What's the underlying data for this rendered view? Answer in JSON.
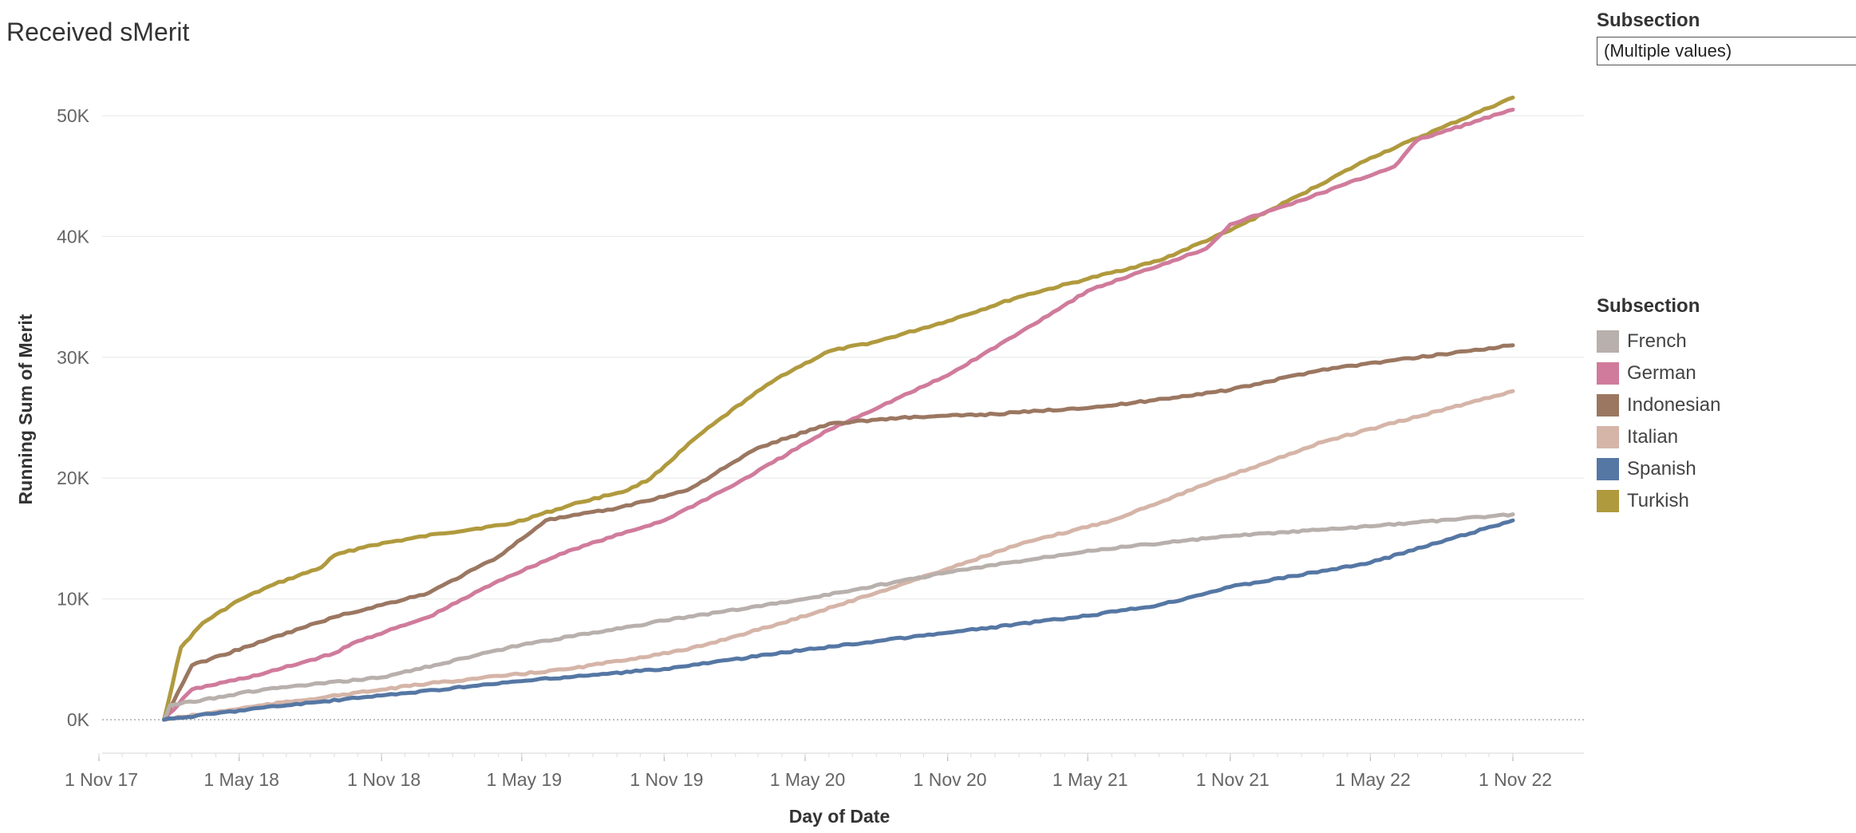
{
  "title": "Received sMerit",
  "filter": {
    "label": "Subsection",
    "value": "(Multiple values)",
    "icon": "dropdown-arrow-icon"
  },
  "legend": {
    "title": "Subsection",
    "items": [
      {
        "label": "French",
        "color": "#b8b0ac"
      },
      {
        "label": "German",
        "color": "#d07b9c"
      },
      {
        "label": "Indonesian",
        "color": "#9b7761"
      },
      {
        "label": "Italian",
        "color": "#d5b5a8"
      },
      {
        "label": "Spanish",
        "color": "#5577a4"
      },
      {
        "label": "Turkish",
        "color": "#b09a3e"
      }
    ]
  },
  "chart_data": {
    "type": "line",
    "title": "Received sMerit",
    "xlabel": "Day of Date",
    "ylabel": "Running Sum of Merit",
    "x_ticks": [
      "1 Nov 17",
      "1 May 18",
      "1 Nov 18",
      "1 May 19",
      "1 Nov 19",
      "1 May 20",
      "1 Nov 20",
      "1 May 21",
      "1 Nov 21",
      "1 May 22",
      "1 Nov 22"
    ],
    "y_ticks": [
      "0K",
      "10K",
      "20K",
      "30K",
      "40K",
      "50K"
    ],
    "ylim": [
      0,
      55000
    ],
    "grid": true,
    "legend_position": "right",
    "series": [
      {
        "name": "Turkish",
        "color": "#b09a3e",
        "x": [
          "2018-01-24",
          "2018-02-15",
          "2018-03-15",
          "2018-05-01",
          "2018-06-15",
          "2018-08-15",
          "2018-09-01",
          "2018-10-15",
          "2019-01-15",
          "2019-04-15",
          "2019-07-15",
          "2019-09-15",
          "2019-10-15",
          "2019-12-15",
          "2020-02-15",
          "2020-04-01",
          "2020-06-01",
          "2020-08-01",
          "2020-11-01",
          "2021-02-01",
          "2021-05-01",
          "2021-08-01",
          "2021-11-01",
          "2022-02-01",
          "2022-05-01",
          "2022-08-01",
          "2022-11-01"
        ],
        "values": [
          0,
          6000,
          8000,
          9900,
          11200,
          12600,
          13600,
          14400,
          15400,
          16200,
          18000,
          19000,
          20000,
          23500,
          26500,
          28500,
          30500,
          31300,
          33000,
          35000,
          36500,
          38000,
          40500,
          43500,
          46500,
          49000,
          51500
        ]
      },
      {
        "name": "German",
        "color": "#d07b9c",
        "x": [
          "2018-01-24",
          "2018-03-01",
          "2018-06-01",
          "2018-09-01",
          "2018-10-01",
          "2019-01-01",
          "2019-04-01",
          "2019-07-01",
          "2019-11-01",
          "2020-02-01",
          "2020-06-01",
          "2020-11-01",
          "2021-02-01",
          "2021-05-01",
          "2021-10-01",
          "2021-11-01",
          "2022-02-01",
          "2022-06-01",
          "2022-07-01",
          "2022-11-01"
        ],
        "values": [
          0,
          2500,
          3800,
          5500,
          6500,
          8500,
          11500,
          14000,
          16500,
          19500,
          24000,
          28500,
          32000,
          35500,
          39000,
          41000,
          43000,
          45800,
          48000,
          50500
        ]
      },
      {
        "name": "Indonesian",
        "color": "#9b7761",
        "x": [
          "2018-01-24",
          "2018-03-01",
          "2018-06-01",
          "2018-09-01",
          "2019-01-01",
          "2019-04-01",
          "2019-06-01",
          "2019-09-01",
          "2019-12-01",
          "2020-03-01",
          "2020-06-01",
          "2020-09-01",
          "2021-01-01",
          "2021-06-01",
          "2021-11-01",
          "2022-03-01",
          "2022-11-01"
        ],
        "values": [
          0,
          4500,
          6500,
          8500,
          10500,
          13500,
          16500,
          17500,
          19000,
          22500,
          24500,
          25000,
          25300,
          26000,
          27300,
          29000,
          31000
        ]
      },
      {
        "name": "Italian",
        "color": "#d5b5a8",
        "x": [
          "2018-01-24",
          "2018-06-01",
          "2019-01-01",
          "2019-07-01",
          "2019-12-01",
          "2020-04-01",
          "2020-08-01",
          "2020-11-01",
          "2021-02-01",
          "2021-06-01",
          "2021-10-01",
          "2022-03-01",
          "2022-11-01"
        ],
        "values": [
          0,
          1200,
          3000,
          4200,
          5800,
          8000,
          10500,
          12500,
          14500,
          16500,
          19500,
          23000,
          27200
        ]
      },
      {
        "name": "French",
        "color": "#b8b0ac",
        "x": [
          "2018-01-24",
          "2018-02-01",
          "2018-06-01",
          "2018-11-01",
          "2019-05-01",
          "2019-11-01",
          "2020-05-01",
          "2020-11-01",
          "2021-05-01",
          "2021-11-01",
          "2022-05-01",
          "2022-11-01"
        ],
        "values": [
          0,
          1200,
          2500,
          3500,
          6200,
          8200,
          10000,
          12200,
          14000,
          15200,
          16000,
          17000
        ]
      },
      {
        "name": "Spanish",
        "color": "#5577a4",
        "x": [
          "2018-01-24",
          "2018-06-01",
          "2018-11-01",
          "2019-05-01",
          "2019-11-01",
          "2020-05-01",
          "2020-11-01",
          "2021-05-01",
          "2021-08-01",
          "2021-11-01",
          "2022-05-01",
          "2022-11-01"
        ],
        "values": [
          0,
          1000,
          2000,
          3200,
          4200,
          5800,
          7200,
          8600,
          9500,
          11000,
          13000,
          16500
        ]
      }
    ]
  }
}
